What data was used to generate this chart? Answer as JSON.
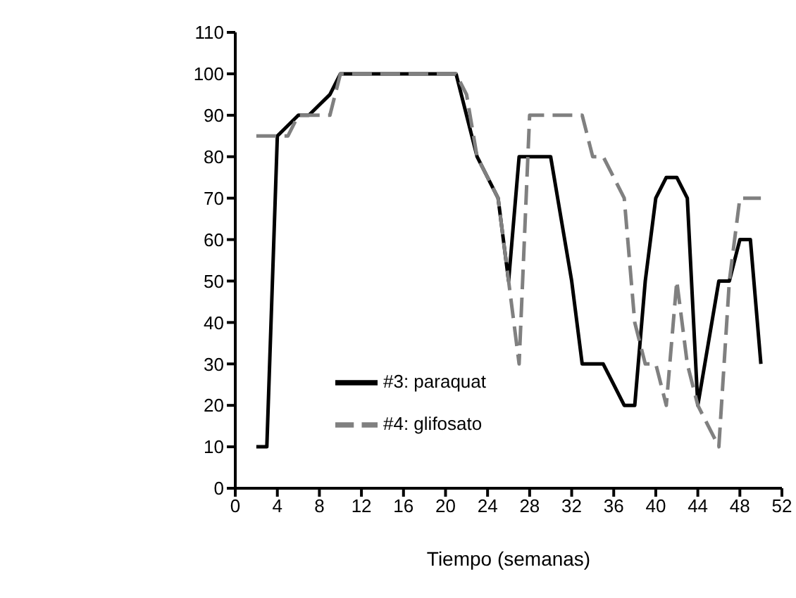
{
  "chart_data": {
    "type": "line",
    "xlabel": "Tiempo (semanas)",
    "x": [
      2,
      3,
      4,
      5,
      6,
      7,
      8,
      9,
      10,
      11,
      12,
      13,
      14,
      15,
      16,
      17,
      18,
      19,
      20,
      21,
      22,
      23,
      24,
      25,
      26,
      27,
      28,
      29,
      30,
      31,
      32,
      33,
      34,
      35,
      36,
      37,
      38,
      39,
      40,
      41,
      42,
      43,
      44,
      45,
      46,
      47,
      48,
      49,
      50
    ],
    "series": [
      {
        "name": "#3: paraquat",
        "color": "#000000",
        "line_style": "solid",
        "values": [
          10,
          10,
          85,
          87.5,
          90,
          90,
          92.5,
          95,
          100,
          100,
          100,
          100,
          100,
          100,
          100,
          100,
          100,
          100,
          100,
          100,
          90,
          80,
          75,
          70,
          50,
          80,
          80,
          80,
          80,
          65,
          50,
          30,
          30,
          30,
          25,
          20,
          20,
          50,
          70,
          75,
          75,
          70,
          20,
          35,
          50,
          50,
          60,
          60,
          30
        ]
      },
      {
        "name": "#4: glifosato",
        "color": "#808080",
        "line_style": "dashed",
        "values": [
          85,
          85,
          85,
          85,
          90,
          90,
          90,
          90,
          100,
          100,
          100,
          100,
          100,
          100,
          100,
          100,
          100,
          100,
          100,
          100,
          95,
          80,
          75,
          70,
          50,
          30,
          90,
          90,
          90,
          90,
          90,
          90,
          80,
          80,
          75,
          70,
          40,
          30,
          30,
          20,
          50,
          30,
          20,
          15,
          10,
          50,
          70,
          70,
          70
        ]
      }
    ],
    "xlim": [
      0,
      52
    ],
    "xticks": [
      0,
      4,
      8,
      12,
      16,
      20,
      24,
      28,
      32,
      36,
      40,
      44,
      48,
      52
    ],
    "ylim": [
      0,
      110
    ],
    "yticks": [
      0,
      10,
      20,
      30,
      40,
      50,
      60,
      70,
      80,
      90,
      100,
      110
    ],
    "grid": false,
    "legend": "bottom left",
    "marker": "none"
  }
}
